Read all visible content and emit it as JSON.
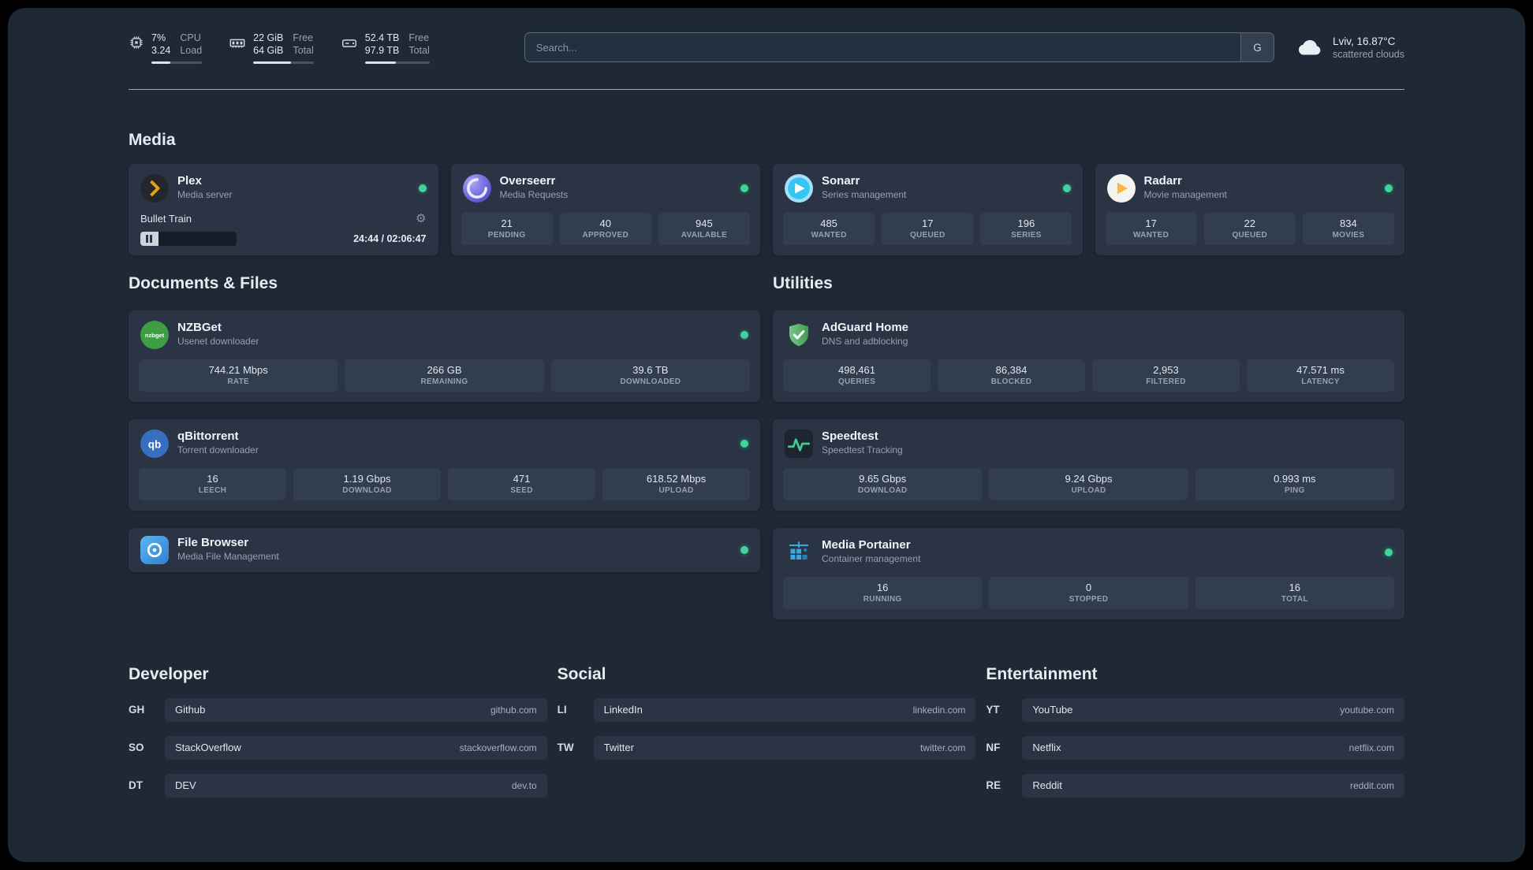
{
  "colors": {
    "background": "#1f2936",
    "card": "#2a3444",
    "tile": "#323d4e",
    "status_online": "#3ed598",
    "plex_accent": "#e5a00d",
    "speedtest_line": "#3cd08c"
  },
  "icons": {
    "settings_glyph": "⚙",
    "cpu": "chip-icon",
    "memory": "ram-icon",
    "disk": "hard-drive-icon",
    "weather": "cloud-icon"
  },
  "topbar": {
    "cpu": {
      "value1": "7%",
      "value2": "3.24",
      "label1": "CPU",
      "label2": "Load",
      "bar_pct": 38
    },
    "memory": {
      "value1": "22 GiB",
      "value2": "64 GiB",
      "label1": "Free",
      "label2": "Total",
      "bar_pct": 62
    },
    "disk": {
      "value1": "52.4 TB",
      "value2": "97.9 TB",
      "label1": "Free",
      "label2": "Total",
      "bar_pct": 48
    },
    "search": {
      "placeholder": "Search...",
      "provider": "G"
    },
    "weather": {
      "location": "Lviv, 16.87°C",
      "condition": "scattered clouds"
    }
  },
  "sections": {
    "media": {
      "title": "Media"
    },
    "documents": {
      "title": "Documents & Files"
    },
    "utilities": {
      "title": "Utilities"
    }
  },
  "services": {
    "plex": {
      "name": "Plex",
      "desc": "Media server",
      "online": true,
      "player": {
        "title": "Bullet Train",
        "time": "24:44 / 02:06:47",
        "progress_pct": 19
      }
    },
    "overseerr": {
      "name": "Overseerr",
      "desc": "Media Requests",
      "online": true,
      "stats": [
        {
          "value": "21",
          "label": "PENDING"
        },
        {
          "value": "40",
          "label": "APPROVED"
        },
        {
          "value": "945",
          "label": "AVAILABLE"
        }
      ]
    },
    "sonarr": {
      "name": "Sonarr",
      "desc": "Series management",
      "online": true,
      "stats": [
        {
          "value": "485",
          "label": "WANTED"
        },
        {
          "value": "17",
          "label": "QUEUED"
        },
        {
          "value": "196",
          "label": "SERIES"
        }
      ]
    },
    "radarr": {
      "name": "Radarr",
      "desc": "Movie management",
      "online": true,
      "stats": [
        {
          "value": "17",
          "label": "WANTED"
        },
        {
          "value": "22",
          "label": "QUEUED"
        },
        {
          "value": "834",
          "label": "MOVIES"
        }
      ]
    },
    "nzbget": {
      "name": "NZBGet",
      "desc": "Usenet downloader",
      "online": true,
      "icon_text": "nzbget",
      "stats": [
        {
          "value": "744.21 Mbps",
          "label": "RATE"
        },
        {
          "value": "266 GB",
          "label": "REMAINING"
        },
        {
          "value": "39.6 TB",
          "label": "DOWNLOADED"
        }
      ]
    },
    "qbittorrent": {
      "name": "qBittorrent",
      "desc": "Torrent downloader",
      "online": true,
      "icon_text": "qb",
      "stats": [
        {
          "value": "16",
          "label": "LEECH"
        },
        {
          "value": "1.19 Gbps",
          "label": "DOWNLOAD"
        },
        {
          "value": "471",
          "label": "SEED"
        },
        {
          "value": "618.52 Mbps",
          "label": "UPLOAD"
        }
      ]
    },
    "filebrowser": {
      "name": "File Browser",
      "desc": "Media File Management",
      "online": true
    },
    "adguard": {
      "name": "AdGuard Home",
      "desc": "DNS and adblocking",
      "stats": [
        {
          "value": "498,461",
          "label": "QUERIES"
        },
        {
          "value": "86,384",
          "label": "BLOCKED"
        },
        {
          "value": "2,953",
          "label": "FILTERED"
        },
        {
          "value": "47.571 ms",
          "label": "LATENCY"
        }
      ]
    },
    "speedtest": {
      "name": "Speedtest",
      "desc": "Speedtest Tracking",
      "stats": [
        {
          "value": "9.65 Gbps",
          "label": "DOWNLOAD"
        },
        {
          "value": "9.24 Gbps",
          "label": "UPLOAD"
        },
        {
          "value": "0.993 ms",
          "label": "PING"
        }
      ]
    },
    "portainer": {
      "name": "Media Portainer",
      "desc": "Container management",
      "online": true,
      "stats": [
        {
          "value": "16",
          "label": "RUNNING"
        },
        {
          "value": "0",
          "label": "STOPPED"
        },
        {
          "value": "16",
          "label": "TOTAL"
        }
      ]
    }
  },
  "bookmarks": {
    "developer": {
      "title": "Developer",
      "items": [
        {
          "abbr": "GH",
          "name": "Github",
          "domain": "github.com"
        },
        {
          "abbr": "SO",
          "name": "StackOverflow",
          "domain": "stackoverflow.com"
        },
        {
          "abbr": "DT",
          "name": "DEV",
          "domain": "dev.to"
        }
      ]
    },
    "social": {
      "title": "Social",
      "items": [
        {
          "abbr": "LI",
          "name": "LinkedIn",
          "domain": "linkedin.com"
        },
        {
          "abbr": "TW",
          "name": "Twitter",
          "domain": "twitter.com"
        }
      ]
    },
    "entertainment": {
      "title": "Entertainment",
      "items": [
        {
          "abbr": "YT",
          "name": "YouTube",
          "domain": "youtube.com"
        },
        {
          "abbr": "NF",
          "name": "Netflix",
          "domain": "netflix.com"
        },
        {
          "abbr": "RE",
          "name": "Reddit",
          "domain": "reddit.com"
        }
      ]
    }
  }
}
